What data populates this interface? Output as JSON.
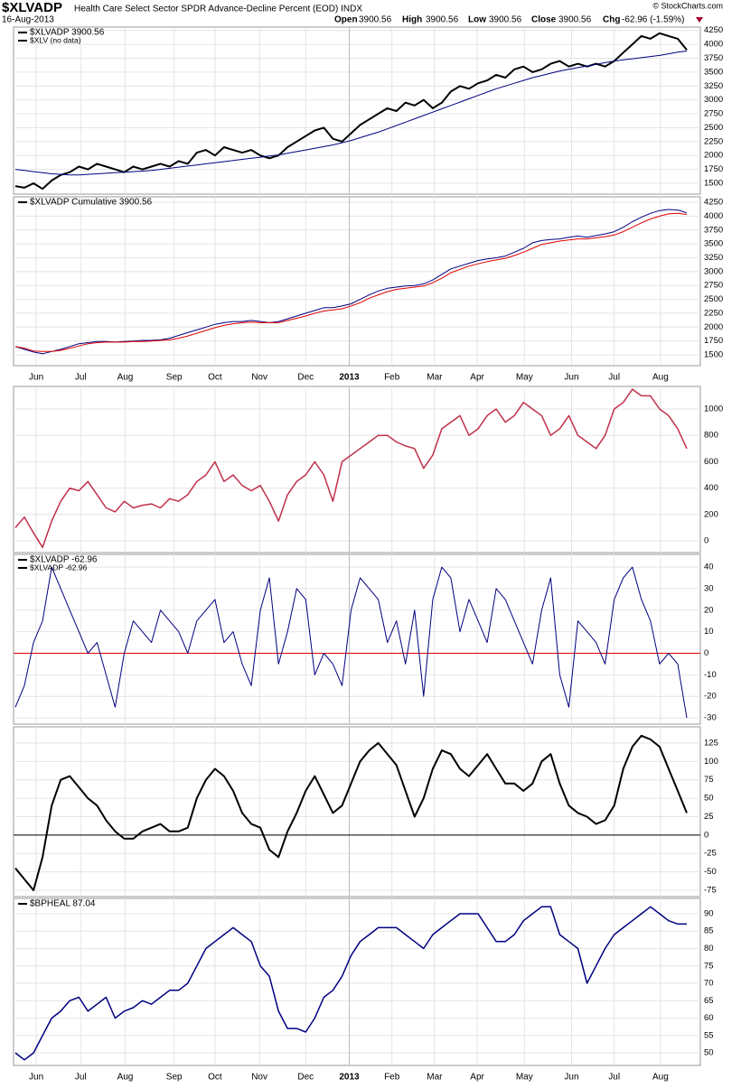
{
  "header": {
    "symbol": "$XLVADP",
    "description": "Health Care Select Sector SPDR Advance-Decline Percent (EOD) INDX",
    "date": "16-Aug-2013",
    "open_label": "Open",
    "open": "3900.56",
    "high_label": "High",
    "high": "3900.56",
    "low_label": "Low",
    "low": "3900.56",
    "close_label": "Close",
    "close": "3900.56",
    "chg_label": "Chg",
    "chg": "-62.96 (-1.59%)",
    "credit": "© StockCharts.com"
  },
  "chart_data": [
    {
      "type": "line",
      "legend": [
        "$XLVADP  3900.56",
        "$XLV (no data)"
      ],
      "xlim": [
        0,
        74
      ],
      "ylim": [
        1305,
        4310
      ],
      "yticks": [
        1500,
        1750,
        2000,
        2250,
        2500,
        2750,
        3000,
        3250,
        3500,
        3750,
        4000,
        4250
      ],
      "series": [
        {
          "color": "#000000",
          "width": 2,
          "values": [
            1450,
            1420,
            1500,
            1400,
            1550,
            1650,
            1700,
            1800,
            1750,
            1850,
            1800,
            1750,
            1700,
            1800,
            1750,
            1800,
            1850,
            1800,
            1900,
            1850,
            2050,
            2100,
            2000,
            2150,
            2100,
            2050,
            2100,
            2000,
            1950,
            2000,
            2150,
            2250,
            2350,
            2450,
            2500,
            2300,
            2250,
            2400,
            2550,
            2650,
            2750,
            2850,
            2800,
            2950,
            2900,
            3000,
            2850,
            2950,
            3150,
            3250,
            3200,
            3300,
            3350,
            3450,
            3400,
            3550,
            3600,
            3500,
            3550,
            3650,
            3700,
            3600,
            3650,
            3600,
            3650,
            3600,
            3700,
            3850,
            4000,
            4150,
            4100,
            4200,
            4150,
            4100,
            3900.56
          ]
        },
        {
          "color": "#000080",
          "width": 1,
          "values": [
            1750,
            1730,
            1710,
            1690,
            1670,
            1660,
            1650,
            1650,
            1660,
            1670,
            1680,
            1690,
            1700,
            1710,
            1720,
            1730,
            1750,
            1770,
            1790,
            1810,
            1830,
            1850,
            1870,
            1890,
            1910,
            1930,
            1950,
            1970,
            1990,
            2010,
            2040,
            2070,
            2100,
            2130,
            2160,
            2190,
            2230,
            2270,
            2320,
            2370,
            2420,
            2480,
            2540,
            2600,
            2660,
            2720,
            2780,
            2840,
            2900,
            2960,
            3020,
            3080,
            3140,
            3200,
            3250,
            3300,
            3350,
            3400,
            3440,
            3480,
            3520,
            3550,
            3580,
            3610,
            3640,
            3670,
            3700,
            3720,
            3740,
            3760,
            3780,
            3800,
            3830,
            3860,
            3880
          ]
        }
      ]
    },
    {
      "type": "line",
      "legend": [
        "$XLVADP  Cumulative 3900.56"
      ],
      "xlim": [
        0,
        74
      ],
      "ylim": [
        1305,
        4348
      ],
      "yticks": [
        1500,
        1750,
        2000,
        2250,
        2500,
        2750,
        3000,
        3250,
        3500,
        3750,
        4000,
        4250
      ],
      "xticks": [
        {
          "value": 2.3,
          "label": "Jun"
        },
        {
          "value": 7.2,
          "label": "Jul"
        },
        {
          "value": 12.1,
          "label": "Aug"
        },
        {
          "value": 17.5,
          "label": "Sep"
        },
        {
          "value": 22,
          "label": "Oct"
        },
        {
          "value": 26.9,
          "label": "Nov"
        },
        {
          "value": 32,
          "label": "Dec"
        },
        {
          "value": 36.8,
          "label": "2013"
        },
        {
          "value": 41.5,
          "label": "Feb"
        },
        {
          "value": 46.2,
          "label": "Mar"
        },
        {
          "value": 50.9,
          "label": "Apr"
        },
        {
          "value": 56.1,
          "label": "May"
        },
        {
          "value": 61.3,
          "label": "Jun"
        },
        {
          "value": 66,
          "label": "Jul"
        },
        {
          "value": 71.1,
          "label": "Aug"
        }
      ],
      "series": [
        {
          "color": "#000080",
          "width": 1,
          "values": [
            1650,
            1600,
            1550,
            1520,
            1560,
            1600,
            1650,
            1700,
            1720,
            1740,
            1740,
            1730,
            1740,
            1750,
            1760,
            1760,
            1770,
            1800,
            1850,
            1900,
            1950,
            2000,
            2050,
            2080,
            2100,
            2100,
            2120,
            2100,
            2080,
            2100,
            2150,
            2200,
            2250,
            2300,
            2350,
            2350,
            2380,
            2420,
            2500,
            2580,
            2650,
            2700,
            2720,
            2740,
            2750,
            2780,
            2850,
            2950,
            3050,
            3100,
            3150,
            3200,
            3230,
            3250,
            3280,
            3350,
            3420,
            3520,
            3560,
            3580,
            3590,
            3620,
            3640,
            3620,
            3650,
            3680,
            3720,
            3800,
            3900,
            3980,
            4050,
            4100,
            4120,
            4110,
            4060
          ]
        },
        {
          "color": "#e00000",
          "width": 1,
          "values": [
            1650,
            1620,
            1570,
            1560,
            1560,
            1580,
            1620,
            1660,
            1700,
            1720,
            1730,
            1730,
            1730,
            1740,
            1740,
            1750,
            1760,
            1770,
            1800,
            1840,
            1890,
            1940,
            1990,
            2030,
            2060,
            2080,
            2090,
            2080,
            2080,
            2080,
            2120,
            2160,
            2200,
            2250,
            2290,
            2310,
            2330,
            2380,
            2440,
            2520,
            2580,
            2640,
            2680,
            2700,
            2720,
            2740,
            2800,
            2880,
            2980,
            3040,
            3100,
            3140,
            3180,
            3210,
            3240,
            3290,
            3350,
            3420,
            3490,
            3520,
            3550,
            3570,
            3590,
            3590,
            3610,
            3630,
            3660,
            3720,
            3800,
            3880,
            3950,
            4000,
            4040,
            4050,
            4030
          ]
        }
      ]
    },
    {
      "type": "line",
      "xlim": [
        0,
        74
      ],
      "ylim": [
        -89,
        1171
      ],
      "yticks": [
        0,
        200,
        400,
        600,
        800,
        1000
      ],
      "series": [
        {
          "color": "#c0304a",
          "width": 1.5,
          "values": [
            100,
            180,
            60,
            -50,
            150,
            300,
            400,
            380,
            450,
            350,
            250,
            220,
            300,
            250,
            270,
            280,
            250,
            320,
            300,
            350,
            450,
            500,
            600,
            450,
            500,
            420,
            380,
            420,
            300,
            150,
            350,
            450,
            500,
            600,
            500,
            300,
            600,
            650,
            700,
            750,
            800,
            800,
            750,
            720,
            700,
            550,
            650,
            850,
            900,
            950,
            800,
            850,
            950,
            1000,
            900,
            950,
            1050,
            1000,
            950,
            800,
            850,
            950,
            800,
            750,
            700,
            800,
            1000,
            1050,
            1150,
            1100,
            1100,
            1000,
            950,
            850,
            700
          ]
        }
      ]
    },
    {
      "type": "line",
      "legend": [
        "$XLVADP  -62.96",
        "$XLVADP -62.96"
      ],
      "xlim": [
        0,
        74
      ],
      "ylim": [
        -32.9,
        45.9
      ],
      "yticks": [
        -30,
        -20,
        -10,
        0,
        10,
        20,
        30,
        40
      ],
      "hline": 0,
      "hline_color": "#e00000",
      "series": [
        {
          "color": "#000080",
          "width": 1,
          "values": [
            -25,
            -15,
            5,
            15,
            40,
            30,
            20,
            10,
            0,
            5,
            -10,
            -25,
            0,
            15,
            10,
            5,
            20,
            15,
            10,
            0,
            15,
            20,
            25,
            5,
            10,
            -5,
            -15,
            20,
            35,
            -5,
            10,
            30,
            25,
            -10,
            0,
            -5,
            -15,
            20,
            35,
            30,
            25,
            5,
            15,
            -5,
            20,
            -20,
            25,
            40,
            35,
            10,
            25,
            15,
            5,
            30,
            25,
            15,
            5,
            -5,
            20,
            35,
            -10,
            -25,
            15,
            10,
            5,
            -5,
            25,
            35,
            40,
            25,
            15,
            -5,
            0,
            -5,
            -30
          ]
        }
      ]
    },
    {
      "type": "line",
      "xlim": [
        0,
        74
      ],
      "ylim": [
        -83.6,
        147
      ],
      "yticks": [
        -75,
        -50,
        -25,
        0,
        25,
        50,
        75,
        100,
        125
      ],
      "hline": 0,
      "hline_color": "#000000",
      "series": [
        {
          "color": "#000000",
          "width": 2,
          "values": [
            -45,
            -60,
            -75,
            -30,
            40,
            75,
            80,
            65,
            50,
            40,
            20,
            5,
            -5,
            -5,
            5,
            10,
            15,
            5,
            5,
            10,
            50,
            75,
            90,
            80,
            60,
            30,
            15,
            10,
            -20,
            -30,
            5,
            30,
            60,
            80,
            55,
            30,
            40,
            70,
            100,
            115,
            125,
            110,
            95,
            60,
            25,
            50,
            90,
            115,
            110,
            90,
            80,
            95,
            110,
            90,
            70,
            70,
            60,
            70,
            100,
            110,
            70,
            40,
            30,
            25,
            15,
            20,
            40,
            90,
            120,
            135,
            130,
            120,
            90,
            60,
            30
          ]
        }
      ]
    },
    {
      "type": "line",
      "legend": [
        "$BPHEAL  87.04"
      ],
      "xlim": [
        0,
        74
      ],
      "ylim": [
        46.4,
        94.4
      ],
      "yticks": [
        50,
        55,
        60,
        65,
        70,
        75,
        80,
        85,
        90
      ],
      "xticks": [
        {
          "value": 2.3,
          "label": "Jun"
        },
        {
          "value": 7.2,
          "label": "Jul"
        },
        {
          "value": 12.1,
          "label": "Aug"
        },
        {
          "value": 17.5,
          "label": "Sep"
        },
        {
          "value": 22,
          "label": "Oct"
        },
        {
          "value": 26.9,
          "label": "Nov"
        },
        {
          "value": 32,
          "label": "Dec"
        },
        {
          "value": 36.8,
          "label": "2013"
        },
        {
          "value": 41.5,
          "label": "Feb"
        },
        {
          "value": 46.2,
          "label": "Mar"
        },
        {
          "value": 50.9,
          "label": "Apr"
        },
        {
          "value": 56.1,
          "label": "May"
        },
        {
          "value": 61.3,
          "label": "Jun"
        },
        {
          "value": 66,
          "label": "Jul"
        },
        {
          "value": 71.1,
          "label": "Aug"
        }
      ],
      "series": [
        {
          "color": "#000080",
          "width": 1.5,
          "values": [
            50,
            48,
            50,
            55,
            60,
            62,
            65,
            66,
            62,
            64,
            66,
            60,
            62,
            63,
            65,
            64,
            66,
            68,
            68,
            70,
            75,
            80,
            82,
            84,
            86,
            84,
            82,
            75,
            72,
            62,
            57,
            57,
            56,
            60,
            66,
            68,
            72,
            78,
            82,
            84,
            86,
            86,
            86,
            84,
            82,
            80,
            84,
            86,
            88,
            90,
            90,
            90,
            86,
            82,
            82,
            84,
            88,
            90,
            92,
            92,
            84,
            82,
            80,
            70,
            75,
            80,
            84,
            86,
            88,
            90,
            92,
            90,
            88,
            87.04,
            87.04
          ]
        }
      ]
    }
  ]
}
